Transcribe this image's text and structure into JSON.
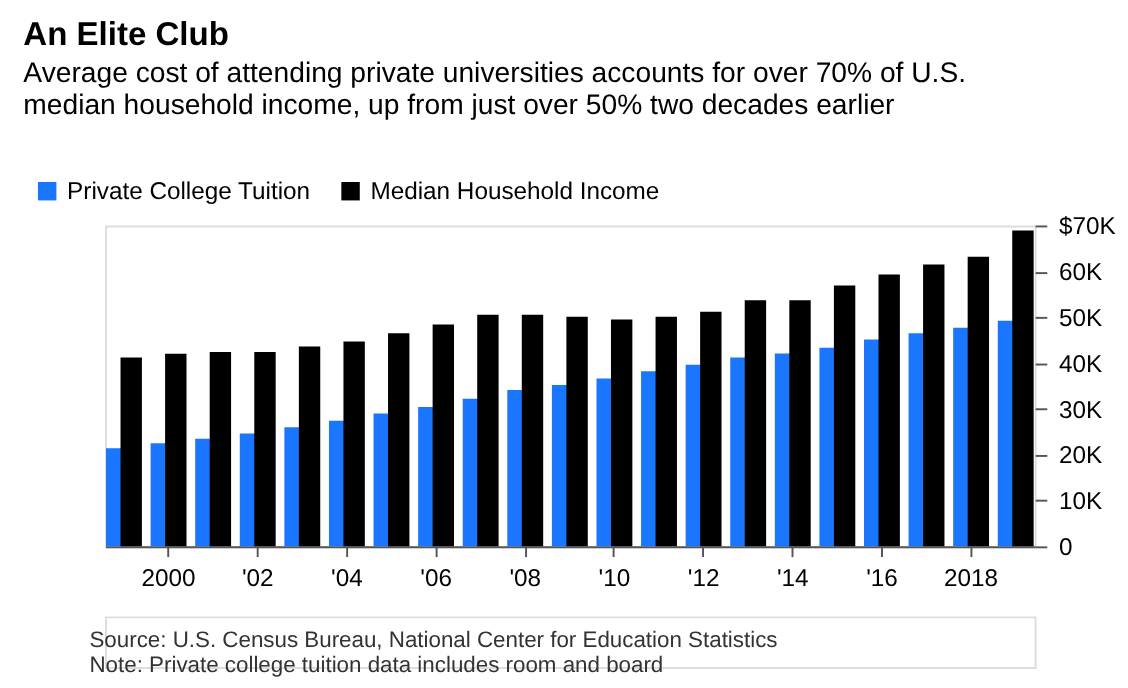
{
  "chart_data": {
    "type": "bar",
    "title": "An Elite Club",
    "subtitle": [
      "Average cost of attending private universities accounts for over 70% of U.S.",
      "median household income, up from just over 50% two decades earlier"
    ],
    "categories": [
      null,
      "2000",
      null,
      "'02",
      null,
      "'04",
      null,
      "'06",
      null,
      "'08",
      null,
      "'10",
      null,
      "'12",
      null,
      "'14",
      null,
      "'16",
      null,
      "2018",
      null
    ],
    "series": [
      {
        "name": "Private College Tuition",
        "color": "#1a75ff",
        "values": [
          21400,
          22500,
          23500,
          24600,
          26000,
          27400,
          29000,
          30400,
          32200,
          34100,
          35200,
          36600,
          38200,
          39600,
          41200,
          42100,
          43300,
          45100,
          46500,
          47700,
          49200
        ]
      },
      {
        "name": "Median Household Income",
        "color": "#000000",
        "values": [
          41200,
          42000,
          42400,
          42400,
          43600,
          44700,
          46500,
          48400,
          50500,
          50500,
          50100,
          49500,
          50100,
          51200,
          53700,
          53700,
          56900,
          59300,
          61500,
          63200,
          68900
        ]
      }
    ],
    "ylim": [
      0,
      70000
    ],
    "yticks": [
      {
        "value": 0,
        "label": "0"
      },
      {
        "value": 10000,
        "label": "10K"
      },
      {
        "value": 20000,
        "label": "20K"
      },
      {
        "value": 30000,
        "label": "30K"
      },
      {
        "value": 40000,
        "label": "40K"
      },
      {
        "value": 50000,
        "label": "50K"
      },
      {
        "value": 60000,
        "label": "60K"
      },
      {
        "value": 70000,
        "label": "$70K"
      }
    ],
    "legend": "top left",
    "grid": false,
    "annotations": [
      "Source: U.S. Census Bureau, National Center for Education Statistics",
      "Note: Private college tuition data includes room and board"
    ]
  }
}
